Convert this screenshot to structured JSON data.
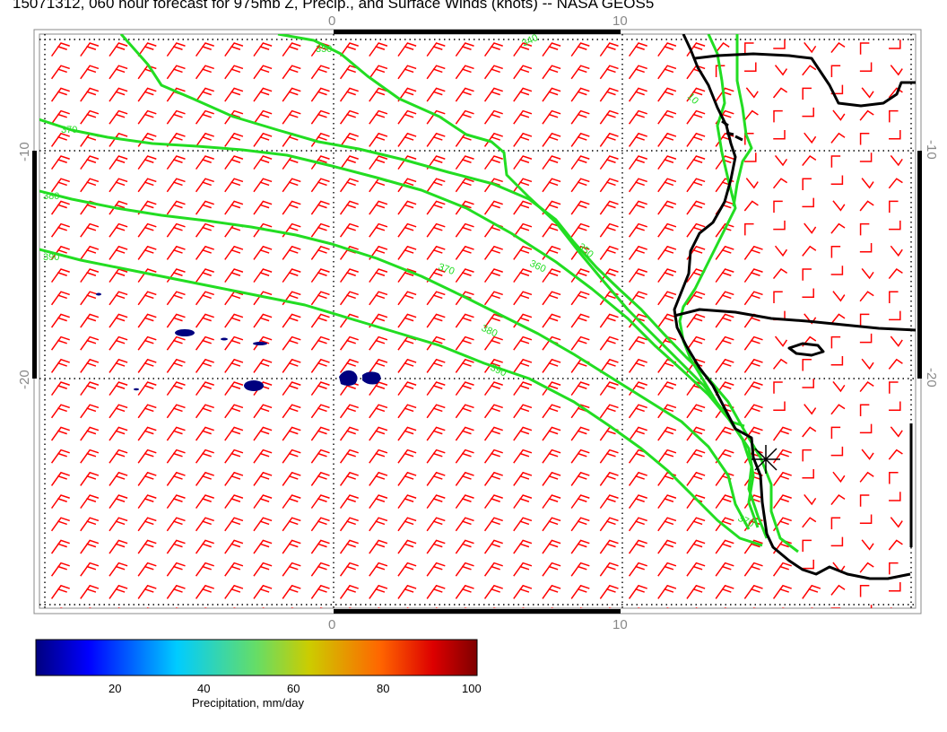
{
  "title": "15071312, 060 hour forecast for 975mb Z, Precip., and Surface Winds (knots) -- NASA GEOS5",
  "axes": {
    "top_ticks": [
      "0",
      "10"
    ],
    "bottom_ticks": [
      "0",
      "10"
    ],
    "left_ticks": [
      "-10",
      "-20"
    ],
    "right_ticks": [
      "-10",
      "-20"
    ]
  },
  "contour_labels": [
    "350",
    "340",
    "370",
    "380",
    "390",
    "370",
    "360",
    "350",
    "380",
    "390",
    "10",
    "370"
  ],
  "colorbar": {
    "title": "Precipitation, mm/day",
    "tick_labels": [
      "20",
      "40",
      "60",
      "80",
      "100"
    ],
    "range": [
      0,
      100
    ]
  },
  "colors": {
    "wind_barbs": "#ff0000",
    "height_contours": "#00ee00",
    "coastline": "#000000",
    "precip_low": "#00007f",
    "grid": "#000000"
  },
  "legend_marker": "asterisk-station-marker"
}
